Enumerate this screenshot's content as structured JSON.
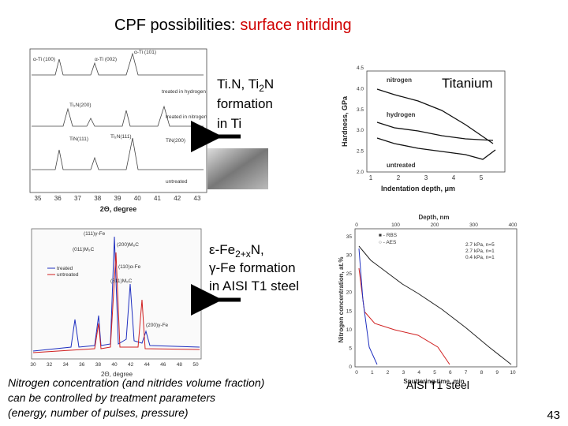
{
  "title": {
    "prefix": "CPF possibilities:",
    "highlight": "surface nitriding"
  },
  "ti_caption": {
    "line1": "Ti.N, Ti",
    "line1_sub": "2",
    "line1_end": "N",
    "line2": "formation",
    "line3": "in Ti"
  },
  "steel_caption": {
    "line1_a": "ε-Fe",
    "line1_sub": "2+x",
    "line1_end": "N,",
    "line2": "γ-Fe formation",
    "line3": "in AISI T1 steel"
  },
  "ti_xrd": {
    "peaks": [
      "α-Ti (100)",
      "α-Ti (002)",
      "α-Ti (101)",
      "Ti₂N(200)",
      "TiN(111)",
      "Ti₂N(111)",
      "TiN(200)"
    ],
    "curves": [
      "treated in hydrogen",
      "treated in nitrogen",
      "untreated"
    ],
    "xticks": [
      "35",
      "36",
      "37",
      "38",
      "39",
      "40",
      "41",
      "42",
      "43"
    ],
    "xlabel": "2Θ, degree"
  },
  "hardness": {
    "title": "Titanium",
    "curves": [
      "nitrogen",
      "hydrogen",
      "untreated"
    ],
    "yticks": [
      "2.0",
      "2.5",
      "3.0",
      "3.5",
      "4.0",
      "4.5"
    ],
    "xticks": [
      "1",
      "2",
      "3",
      "4",
      "5"
    ],
    "ylabel": "Hardness, GPa",
    "xlabel": "Indentation depth, μm"
  },
  "steel_xrd": {
    "peaks": [
      "(111)γ-Fe",
      "(011)M₂C",
      "(200)M₆C",
      "(110)α-Fe",
      "(311)M₆C",
      "(200)γ-Fe"
    ],
    "legend": [
      "treated",
      "untreated"
    ],
    "xticks": [
      "30",
      "32",
      "34",
      "36",
      "38",
      "40",
      "42",
      "44",
      "46",
      "48",
      "50"
    ],
    "xlabel": "2Θ, degree"
  },
  "nitrogen": {
    "top_label": "Depth, nm",
    "top_ticks": [
      "0",
      "100",
      "200",
      "300",
      "400"
    ],
    "legend_methods": [
      "■ - RBS",
      "○ - AES"
    ],
    "legend_curves": [
      "2.7 kPa, n=5",
      "2.7 kPa, n=1",
      "0.4 kPa, n=1"
    ],
    "yticks": [
      "0",
      "5",
      "10",
      "15",
      "20",
      "25",
      "30",
      "35"
    ],
    "xticks": [
      "0",
      "1",
      "2",
      "3",
      "4",
      "5",
      "6",
      "7",
      "8",
      "9",
      "10"
    ],
    "ylabel": "Nitrogen concentration, at.%",
    "xlabel": "Sputtering time, min"
  },
  "footer": {
    "note": [
      "Nitrogen concentration (and nitrides volume fraction)",
      "can be  controlled by treatment parameters",
      "(energy, number of pulses, pressure)"
    ],
    "steel_label": "AISI T1 steel",
    "page_number": "43"
  }
}
